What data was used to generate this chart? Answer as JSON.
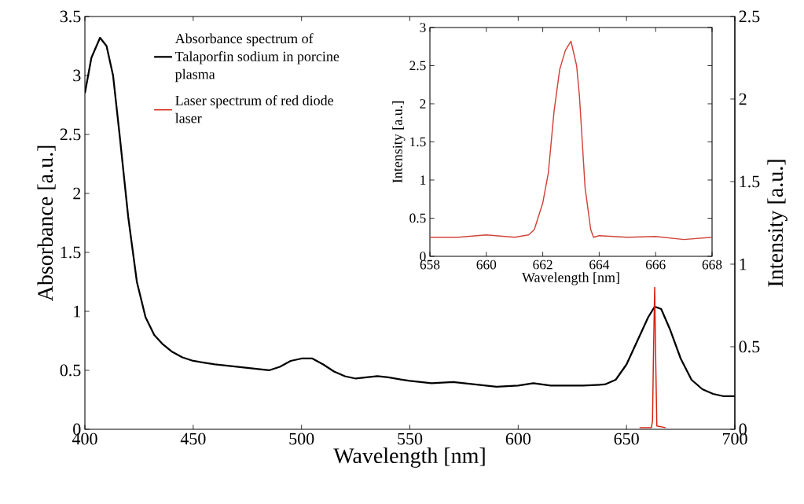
{
  "chart_data": [
    {
      "type": "line",
      "xlabel": "Wavelength [nm]",
      "ylabel": "Absorbance [a.u.]",
      "y2label": "Intensity [a.u.]",
      "xlim": [
        400,
        700
      ],
      "xticks": [
        400,
        450,
        500,
        550,
        600,
        650,
        700
      ],
      "ylim": [
        0,
        3.5
      ],
      "yticks": [
        0,
        0.5,
        1,
        1.5,
        2,
        2.5,
        3,
        3.5
      ],
      "y2lim": [
        0,
        2.5
      ],
      "y2ticks": [
        0,
        0.5,
        1,
        1.5,
        2,
        2.5
      ],
      "legend": "top left",
      "series": [
        {
          "name": "Absorbance spectrum of Talaporfin sodium in porcine plasma",
          "color": "#000000",
          "x": [
            400,
            403,
            407,
            410,
            413,
            416,
            420,
            424,
            428,
            432,
            436,
            440,
            445,
            450,
            460,
            470,
            480,
            485,
            490,
            495,
            500,
            505,
            510,
            515,
            520,
            525,
            530,
            535,
            540,
            550,
            560,
            570,
            580,
            590,
            600,
            607,
            615,
            630,
            640,
            645,
            650,
            655,
            660,
            663,
            666,
            670,
            675,
            680,
            685,
            690,
            695,
            700
          ],
          "values": [
            2.85,
            3.15,
            3.32,
            3.25,
            3.0,
            2.5,
            1.8,
            1.25,
            0.95,
            0.8,
            0.72,
            0.66,
            0.61,
            0.58,
            0.55,
            0.53,
            0.51,
            0.5,
            0.53,
            0.58,
            0.6,
            0.6,
            0.55,
            0.49,
            0.45,
            0.43,
            0.44,
            0.45,
            0.44,
            0.41,
            0.39,
            0.4,
            0.38,
            0.36,
            0.37,
            0.39,
            0.37,
            0.37,
            0.38,
            0.42,
            0.55,
            0.75,
            0.95,
            1.04,
            1.02,
            0.85,
            0.6,
            0.42,
            0.34,
            0.3,
            0.28,
            0.28
          ]
        },
        {
          "name": "Laser spectrum of red diode laser",
          "color": "#d62010",
          "axis": "y2",
          "x": [
            656,
            660,
            661.5,
            662,
            662.5,
            663,
            663.5,
            664,
            668
          ],
          "values": [
            0.01,
            0.01,
            0.01,
            0.05,
            0.5,
            0.86,
            0.4,
            0.02,
            0.01
          ]
        }
      ]
    },
    {
      "type": "line",
      "xlabel": "Wavelength [nm]",
      "ylabel": "Intensity [a.u.]",
      "xlim": [
        658,
        668
      ],
      "xticks": [
        658,
        660,
        662,
        664,
        666,
        668
      ],
      "ylim": [
        0,
        3
      ],
      "yticks": [
        0,
        0.5,
        1,
        1.5,
        2,
        2.5,
        3
      ],
      "series": [
        {
          "color": "#d0453a",
          "x": [
            658,
            659,
            660,
            661,
            661.5,
            661.7,
            662,
            662.2,
            662.4,
            662.6,
            662.8,
            663,
            663.2,
            663.3,
            663.5,
            663.7,
            663.8,
            664,
            665,
            666,
            667,
            668
          ],
          "values": [
            0.25,
            0.25,
            0.28,
            0.25,
            0.28,
            0.35,
            0.7,
            1.1,
            1.9,
            2.45,
            2.7,
            2.82,
            2.5,
            2.1,
            0.9,
            0.35,
            0.25,
            0.27,
            0.25,
            0.26,
            0.22,
            0.25
          ]
        }
      ]
    }
  ]
}
